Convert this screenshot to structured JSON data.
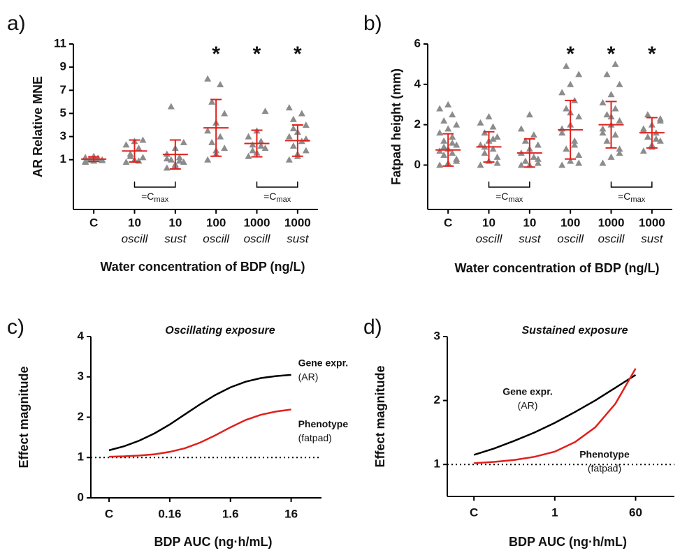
{
  "chart_data": [
    {
      "type": "strip",
      "panel": "a)",
      "ylabel": "AR Relative MNE",
      "xlabel": "Water concentration of BDP (ng/L)",
      "categories": [
        "C",
        "10",
        "10",
        "100",
        "1000",
        "1000"
      ],
      "subcategories": [
        null,
        "oscill",
        "sust",
        "oscill",
        "oscill",
        "sust"
      ],
      "points": [
        [
          0.8,
          0.9,
          1,
          1,
          1.1,
          1.2,
          1.3,
          0.95,
          1.05,
          1.15,
          0.85,
          1.25
        ],
        [
          0.8,
          1,
          1.2,
          1.5,
          2,
          2.3,
          2.6,
          2.7,
          1.3,
          0.9
        ],
        [
          0.3,
          0.5,
          0.8,
          1,
          1.2,
          1.5,
          2,
          2.5,
          5.6,
          0.9,
          1.1,
          0.6
        ],
        [
          1,
          1.5,
          2,
          2.5,
          3,
          3.5,
          4.2,
          5,
          6,
          7.5,
          8,
          1.8
        ],
        [
          1.3,
          1.6,
          2,
          2.3,
          2.6,
          3,
          3.5,
          5.2,
          1.8,
          2.2
        ],
        [
          1,
          1.5,
          1.8,
          2.2,
          2.6,
          3,
          3.4,
          4,
          4.5,
          5,
          5.5,
          1.3,
          2.8,
          3.7
        ]
      ],
      "means": [
        1.05,
        1.75,
        1.45,
        3.75,
        2.4,
        2.65
      ],
      "sd": [
        0.2,
        0.95,
        1.25,
        2.45,
        1.15,
        1.35
      ],
      "significance": [
        null,
        null,
        null,
        "*",
        "*",
        "*"
      ],
      "brackets": [
        {
          "from": 1,
          "to": 2,
          "label": "=C",
          "sub": "max"
        },
        {
          "from": 4,
          "to": 5,
          "label": "=C",
          "sub": "max"
        }
      ],
      "ylim": [
        -3.3,
        11
      ],
      "yticks": [
        1,
        3,
        5,
        7,
        9,
        11
      ],
      "point_color": "#8c8c8c",
      "bar_color": "#e0201b"
    },
    {
      "type": "strip",
      "panel": "b)",
      "ylabel": "Fatpad height (mm)",
      "xlabel": "Water concentration of BDP (ng/L)",
      "categories": [
        "C",
        "10",
        "10",
        "100",
        "1000",
        "1000"
      ],
      "subcategories": [
        null,
        "oscill",
        "sust",
        "oscill",
        "oscill",
        "sust"
      ],
      "points": [
        [
          0,
          0.1,
          0.3,
          0.5,
          0.6,
          0.7,
          0.8,
          1,
          1.2,
          1.4,
          1.6,
          1.8,
          2,
          2.2,
          2.5,
          2.8,
          3,
          0.2,
          0.9,
          1.1
        ],
        [
          0,
          0.2,
          0.4,
          0.6,
          0.8,
          1,
          1.2,
          1.4,
          1.6,
          1.9,
          2.1,
          2.4,
          0.1,
          0.9,
          1.3
        ],
        [
          0,
          0,
          0.1,
          0.2,
          0.4,
          0.6,
          0.8,
          1,
          1.2,
          1.5,
          1.8,
          2.5,
          0.3
        ],
        [
          0,
          0.2,
          0.5,
          0.8,
          1.2,
          1.6,
          2,
          2.4,
          2.8,
          3.2,
          3.6,
          4,
          4.5,
          4.9,
          1,
          1.8,
          2.6,
          0.1
        ],
        [
          0.1,
          0.4,
          0.8,
          1.2,
          1.5,
          1.8,
          2,
          2.2,
          2.5,
          2.8,
          3.1,
          3.5,
          4,
          4.5,
          5,
          1.6,
          2.4,
          0.6
        ],
        [
          0.7,
          1,
          1.2,
          1.4,
          1.6,
          1.8,
          2,
          2.2,
          2.5,
          1.3,
          1.7,
          0.9,
          2.3
        ]
      ],
      "means": [
        0.75,
        0.9,
        0.6,
        1.75,
        2.0,
        1.6
      ],
      "sd": [
        0.8,
        0.75,
        0.7,
        1.45,
        1.15,
        0.75
      ],
      "significance": [
        null,
        null,
        null,
        "*",
        "*",
        "*"
      ],
      "brackets": [
        {
          "from": 1,
          "to": 2,
          "label": "=C",
          "sub": "max"
        },
        {
          "from": 4,
          "to": 5,
          "label": "=C",
          "sub": "max"
        }
      ],
      "ylim": [
        -2.2,
        6
      ],
      "yticks": [
        0,
        2,
        4,
        6
      ],
      "point_color": "#8c8c8c",
      "bar_color": "#e0201b"
    },
    {
      "type": "line",
      "panel": "c)",
      "title": "Oscillating exposure",
      "ylabel": "Effect magnitude",
      "xlabel": "BDP AUC (ng·h/mL)",
      "x": [
        0,
        0.25,
        0.5,
        0.75,
        1,
        1.25,
        1.5,
        1.75,
        2,
        2.25,
        2.5,
        2.75,
        3
      ],
      "xlim": [
        -0.3,
        3.5
      ],
      "xticks": [
        {
          "value": 0,
          "label": "C"
        },
        {
          "value": 1,
          "label": "0.16"
        },
        {
          "value": 2,
          "label": "1.6"
        },
        {
          "value": 3,
          "label": "16"
        }
      ],
      "ylim": [
        0,
        4
      ],
      "yticks": [
        0,
        1,
        2,
        3,
        4
      ],
      "reference_line": 1,
      "series": [
        {
          "name": "Gene expr.",
          "sublabel": "(AR)",
          "color": "#000000",
          "values": [
            1.18,
            1.28,
            1.42,
            1.6,
            1.82,
            2.07,
            2.32,
            2.55,
            2.74,
            2.88,
            2.97,
            3.02,
            3.05
          ]
        },
        {
          "name": "Phenotype",
          "sublabel": "(fatpad)",
          "color": "#e0201b",
          "values": [
            1.02,
            1.03,
            1.05,
            1.08,
            1.14,
            1.23,
            1.37,
            1.55,
            1.75,
            1.93,
            2.06,
            2.14,
            2.19
          ]
        }
      ]
    },
    {
      "type": "line",
      "panel": "d)",
      "title": "Sustained exposure",
      "ylabel": "Effect magnitude",
      "xlabel": "BDP AUC (ng·h/mL)",
      "x": [
        0,
        0.25,
        0.5,
        0.75,
        1,
        1.25,
        1.5,
        1.75,
        2
      ],
      "xlim": [
        -0.33,
        2.48
      ],
      "xticks": [
        {
          "value": 0,
          "label": "C"
        },
        1,
        {
          "value": 2,
          "label": "60"
        }
      ],
      "ylim": [
        0.5,
        3
      ],
      "yticks": [
        1,
        2,
        3
      ],
      "reference_line": 1,
      "series": [
        {
          "name": "Gene expr.",
          "sublabel": "(AR)",
          "color": "#000000",
          "values": [
            1.15,
            1.25,
            1.37,
            1.5,
            1.65,
            1.82,
            2.0,
            2.2,
            2.4
          ]
        },
        {
          "name": "Phenotype",
          "sublabel": "(fatpad)",
          "color": "#e0201b",
          "values": [
            1.02,
            1.04,
            1.07,
            1.12,
            1.2,
            1.35,
            1.58,
            1.95,
            2.5
          ]
        }
      ]
    }
  ]
}
